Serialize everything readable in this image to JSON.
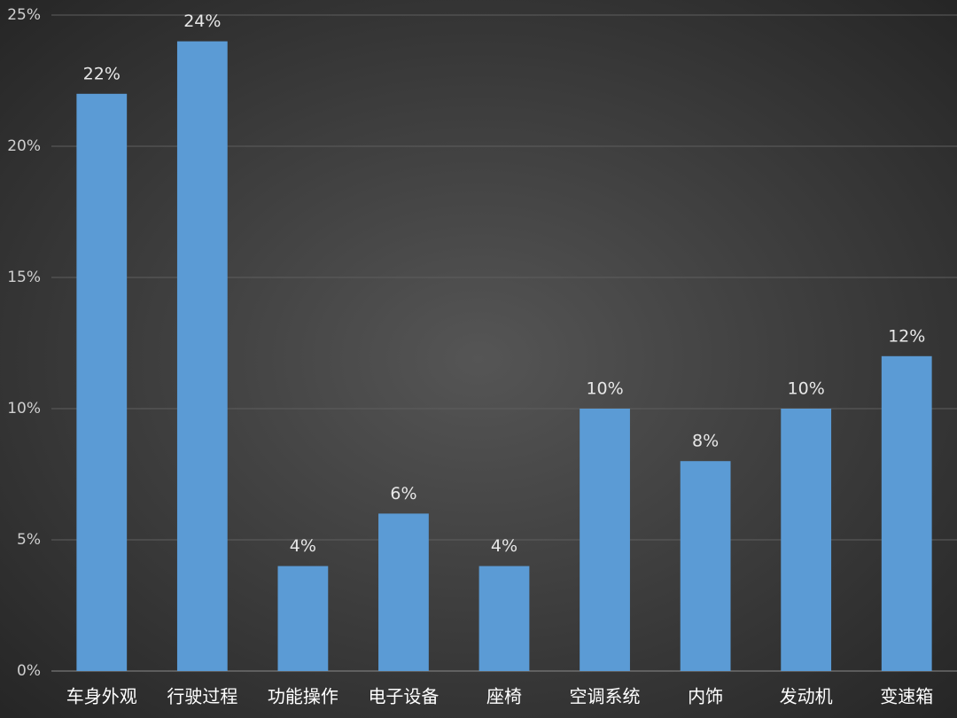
{
  "chart_data": {
    "type": "bar",
    "categories": [
      "车身外观",
      "行驶过程",
      "功能操作",
      "电子设备",
      "座椅",
      "空调系统",
      "内饰",
      "发动机",
      "变速箱"
    ],
    "values": [
      22,
      24,
      4,
      6,
      4,
      10,
      8,
      10,
      12
    ],
    "value_labels": [
      "22%",
      "24%",
      "4%",
      "6%",
      "4%",
      "10%",
      "8%",
      "10%",
      "12%"
    ],
    "color": "#5b9bd5",
    "ylim": [
      0,
      25
    ],
    "yticks": [
      {
        "value": 0,
        "label": "0%"
      },
      {
        "value": 5,
        "label": "5%"
      },
      {
        "value": 10,
        "label": "10%"
      },
      {
        "value": 15,
        "label": "15%"
      },
      {
        "value": 20,
        "label": "20%"
      },
      {
        "value": 25,
        "label": "25%"
      }
    ],
    "grid": true
  }
}
